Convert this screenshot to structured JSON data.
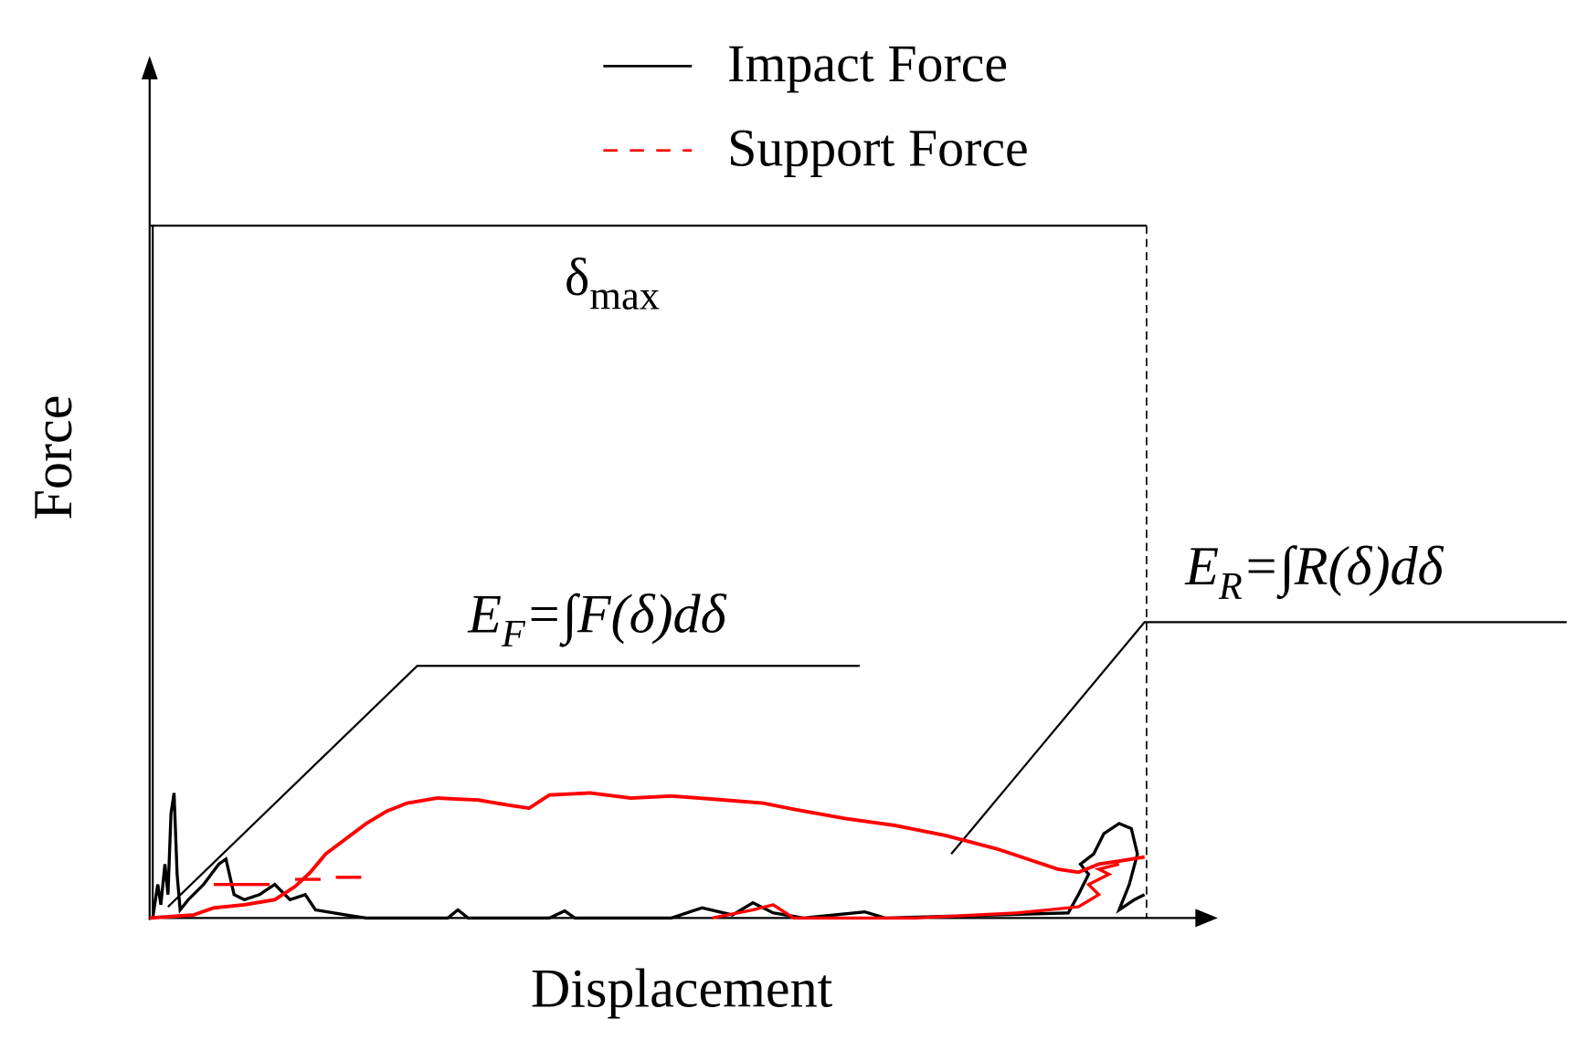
{
  "legend": {
    "items": [
      {
        "label": "Impact Force",
        "color": "#000000"
      },
      {
        "label": "Support Force",
        "color": "#ff0000"
      }
    ]
  },
  "axes": {
    "x_label": "Displacement",
    "y_label": "Force"
  },
  "annotations": {
    "delta_max": {
      "symbol": "δ",
      "sub": "max"
    },
    "ef": {
      "base": "E",
      "sub": "F",
      "expr": "=∫F(δ)dδ"
    },
    "er": {
      "base": "E",
      "sub": "R",
      "expr": "=∫R(δ)dδ"
    }
  }
}
